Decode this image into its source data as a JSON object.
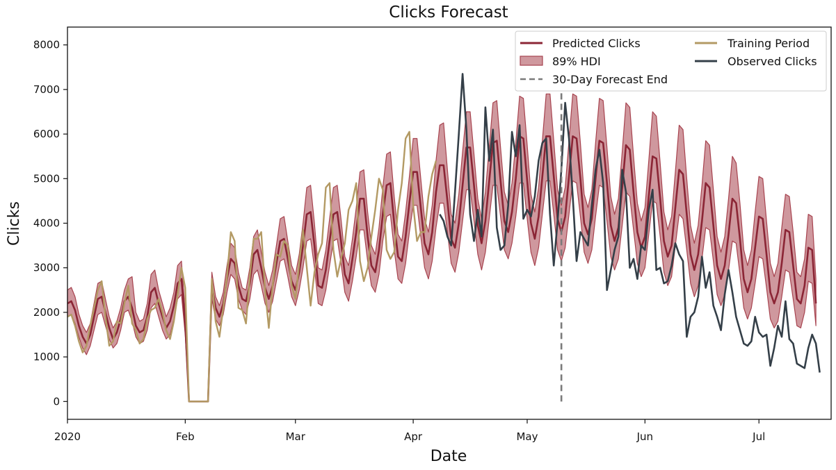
{
  "chart_data": {
    "type": "line",
    "title": "Clicks Forecast",
    "xlabel": "Date",
    "ylabel": "Clicks",
    "x_range": [
      "2020-01-01",
      "2020-07-20"
    ],
    "ylim": [
      -400,
      8400
    ],
    "yticks": [
      0,
      1000,
      2000,
      3000,
      4000,
      5000,
      6000,
      7000,
      8000
    ],
    "xticks": [
      {
        "date": "2020-01-01",
        "label": "2020"
      },
      {
        "date": "2020-02-01",
        "label": "Feb"
      },
      {
        "date": "2020-03-01",
        "label": "Mar"
      },
      {
        "date": "2020-04-01",
        "label": "Apr"
      },
      {
        "date": "2020-05-01",
        "label": "May"
      },
      {
        "date": "2020-06-01",
        "label": "Jun"
      },
      {
        "date": "2020-07-01",
        "label": "Jul"
      }
    ],
    "forecast_end": {
      "date": "2020-05-10",
      "label": "30-Day Forecast End"
    },
    "legend_position": "upper-right",
    "colors": {
      "predicted": "#8b2535",
      "hdi_fill": "#a7434f",
      "training": "#b39a64",
      "observed": "#343f48",
      "forecast_end": "#7a7a7a"
    },
    "series": [
      {
        "name": "Predicted Clicks",
        "start_date": "2020-01-01",
        "values": [
          2200,
          2250,
          2050,
          1700,
          1450,
          1300,
          1500,
          1900,
          2300,
          2350,
          2000,
          1650,
          1400,
          1550,
          1850,
          2250,
          2350,
          2100,
          1700,
          1550,
          1600,
          1900,
          2450,
          2550,
          2200,
          1900,
          1650,
          1800,
          2150,
          2650,
          2750,
          1750,
          0,
          0,
          0,
          0,
          0,
          0,
          2600,
          2100,
          1900,
          2200,
          2750,
          3200,
          3100,
          2600,
          2300,
          2250,
          2650,
          3300,
          3400,
          3000,
          2550,
          2300,
          2600,
          3100,
          3600,
          3650,
          3200,
          2700,
          2500,
          2900,
          3500,
          4200,
          4250,
          3500,
          2600,
          2550,
          2950,
          3600,
          4200,
          4250,
          3600,
          2850,
          2650,
          3200,
          3800,
          4550,
          4550,
          3700,
          3050,
          2900,
          3400,
          4200,
          4850,
          4900,
          4000,
          3250,
          3150,
          3700,
          4450,
          5150,
          5150,
          4350,
          3550,
          3300,
          3800,
          4700,
          5300,
          5300,
          4500,
          3650,
          3450,
          4000,
          4850,
          5700,
          5700,
          4850,
          3950,
          3550,
          4050,
          4950,
          5800,
          5850,
          4950,
          4050,
          3800,
          4250,
          5000,
          5950,
          5900,
          4950,
          4000,
          3650,
          4150,
          5050,
          5950,
          5950,
          5050,
          4100,
          3800,
          4150,
          5050,
          5950,
          5900,
          5000,
          4000,
          3750,
          4100,
          5000,
          5850,
          5800,
          4900,
          3950,
          3600,
          3900,
          4800,
          5750,
          5650,
          4700,
          3800,
          3450,
          3700,
          4600,
          5500,
          5450,
          4550,
          3600,
          3250,
          3500,
          4350,
          5200,
          5100,
          4200,
          3300,
          2950,
          3300,
          4050,
          4900,
          4800,
          3950,
          3050,
          2750,
          3050,
          3750,
          4550,
          4450,
          3650,
          2750,
          2450,
          2750,
          3450,
          4150,
          4100,
          3300,
          2450,
          2200,
          2450,
          3100,
          3850,
          3800,
          3050,
          2300,
          2200,
          2600,
          3450,
          3400,
          2200
        ]
      },
      {
        "name": "89% HDI Lower",
        "start_date": "2020-01-01",
        "values": [
          1900,
          1950,
          1750,
          1450,
          1200,
          1050,
          1250,
          1600,
          1950,
          2000,
          1700,
          1400,
          1200,
          1300,
          1600,
          2000,
          2050,
          1800,
          1450,
          1300,
          1350,
          1600,
          2100,
          2200,
          1900,
          1600,
          1400,
          1500,
          1850,
          2300,
          2400,
          1500,
          0,
          0,
          0,
          0,
          0,
          0,
          2300,
          1850,
          1700,
          1950,
          2450,
          2850,
          2750,
          2300,
          2050,
          1950,
          2300,
          2850,
          2950,
          2600,
          2200,
          2000,
          2250,
          2700,
          3150,
          3200,
          2800,
          2350,
          2150,
          2500,
          3000,
          3600,
          3650,
          3000,
          2200,
          2150,
          2500,
          3050,
          3600,
          3650,
          3100,
          2450,
          2250,
          2700,
          3250,
          3850,
          3850,
          3150,
          2600,
          2450,
          2850,
          3600,
          4150,
          4200,
          3400,
          2750,
          2650,
          3100,
          3800,
          4400,
          4400,
          3700,
          3000,
          2750,
          3150,
          3900,
          4450,
          4450,
          3800,
          3100,
          2900,
          3350,
          4050,
          4750,
          4750,
          4050,
          3300,
          2950,
          3350,
          4100,
          4850,
          4850,
          4150,
          3400,
          3200,
          3550,
          4150,
          4900,
          4900,
          4100,
          3350,
          3050,
          3450,
          4200,
          4950,
          4950,
          4200,
          3400,
          3150,
          3450,
          4200,
          4950,
          4900,
          4150,
          3350,
          3100,
          3400,
          4150,
          4850,
          4800,
          4050,
          3250,
          2950,
          3200,
          3950,
          4700,
          4600,
          3850,
          3100,
          2800,
          3000,
          3750,
          4500,
          4450,
          3700,
          2900,
          2600,
          2800,
          3500,
          4200,
          4100,
          3400,
          2650,
          2350,
          2600,
          3200,
          3900,
          3850,
          3150,
          2400,
          2150,
          2400,
          2950,
          3600,
          3550,
          2850,
          2100,
          1850,
          2100,
          2650,
          3250,
          3200,
          2550,
          1850,
          1650,
          1800,
          2350,
          2950,
          2900,
          2300,
          1700,
          1650,
          2000,
          2700,
          2650,
          1700
        ]
      },
      {
        "name": "89% HDI Upper",
        "start_date": "2020-01-01",
        "values": [
          2500,
          2560,
          2350,
          1960,
          1700,
          1550,
          1750,
          2200,
          2650,
          2700,
          2300,
          1900,
          1650,
          1800,
          2100,
          2500,
          2750,
          2800,
          2000,
          1800,
          1850,
          2200,
          2850,
          2950,
          2500,
          2200,
          1900,
          2100,
          2450,
          3050,
          3150,
          2000,
          0,
          0,
          0,
          0,
          0,
          0,
          2900,
          2350,
          2150,
          2450,
          3050,
          3550,
          3450,
          2900,
          2550,
          2500,
          3000,
          3700,
          3850,
          3350,
          2900,
          2600,
          2950,
          3500,
          4100,
          4150,
          3600,
          3050,
          2850,
          3300,
          4000,
          4800,
          4850,
          4000,
          3000,
          2950,
          3400,
          4100,
          4800,
          4850,
          4100,
          3250,
          3050,
          3650,
          4350,
          5150,
          5200,
          4250,
          3500,
          3300,
          3900,
          4800,
          5550,
          5600,
          4600,
          3750,
          3600,
          4250,
          5050,
          5900,
          5900,
          5000,
          4100,
          3800,
          4400,
          5400,
          6200,
          6250,
          5200,
          4200,
          4000,
          4650,
          5600,
          6500,
          6500,
          5550,
          4550,
          4100,
          4700,
          5700,
          6700,
          6750,
          5700,
          4700,
          4400,
          4900,
          5800,
          6850,
          6800,
          5750,
          4650,
          4250,
          4800,
          5850,
          6900,
          6900,
          5850,
          4750,
          4400,
          4800,
          5850,
          6900,
          6850,
          5800,
          4650,
          4350,
          4750,
          5800,
          6800,
          6750,
          5700,
          4600,
          4200,
          4550,
          5600,
          6700,
          6600,
          5500,
          4450,
          4050,
          4350,
          5400,
          6500,
          6400,
          5350,
          4250,
          3850,
          4150,
          5150,
          6200,
          6100,
          5000,
          3950,
          3550,
          3950,
          4850,
          5850,
          5750,
          4750,
          3700,
          3350,
          3700,
          4550,
          5500,
          5350,
          4450,
          3400,
          3050,
          3400,
          4250,
          5050,
          5000,
          4050,
          3100,
          2800,
          3100,
          3900,
          4650,
          4600,
          3800,
          2900,
          2800,
          3200,
          4200,
          4150,
          2750
        ]
      },
      {
        "name": "Training Period",
        "start_date": "2020-01-01",
        "end_date": "2020-04-07",
        "values": [
          1900,
          1950,
          1700,
          1350,
          1100,
          1250,
          1700,
          2100,
          2500,
          2700,
          1900,
          1250,
          1350,
          1800,
          1750,
          2200,
          2600,
          1750,
          1600,
          1300,
          1400,
          1850,
          2050,
          2100,
          2300,
          2000,
          1600,
          1400,
          1800,
          2400,
          3000,
          2550,
          0,
          0,
          0,
          0,
          0,
          0,
          2750,
          1800,
          1450,
          2100,
          2800,
          3800,
          3600,
          2100,
          2050,
          1750,
          2800,
          3650,
          3650,
          3800,
          2500,
          1650,
          2600,
          3300,
          3250,
          3600,
          3500,
          2600,
          2300,
          3100,
          3850,
          3000,
          2150,
          2900,
          3300,
          3550,
          4800,
          4900,
          3400,
          2800,
          3200,
          3550,
          4300,
          4500,
          4900,
          3150,
          2700,
          3000,
          3700,
          4300,
          5000,
          4750,
          3400,
          3200,
          3350,
          4300,
          4900,
          5900,
          6050,
          4400,
          3600,
          3800,
          3800,
          4600,
          5100,
          5400
        ]
      },
      {
        "name": "Observed Clicks",
        "start_date": "2020-04-08",
        "values": [
          4200,
          4050,
          3700,
          3500,
          4700,
          6000,
          7350,
          6100,
          4200,
          3600,
          4300,
          3700,
          6600,
          5400,
          6100,
          3900,
          3400,
          3500,
          4400,
          6050,
          5500,
          6200,
          4100,
          4300,
          4150,
          4600,
          5400,
          5800,
          5900,
          4200,
          3050,
          4050,
          5200,
          6700,
          5900,
          4600,
          3150,
          3800,
          3650,
          3500,
          4400,
          5200,
          5650,
          4900,
          2500,
          2950,
          3400,
          3700,
          5200,
          4700,
          3000,
          3200,
          2750,
          3500,
          3400,
          4300,
          4750,
          2950,
          3000,
          2650,
          2700,
          3050,
          3550,
          3300,
          3150,
          1450,
          1900,
          2000,
          2350,
          3250,
          2550,
          2900,
          2150,
          1900,
          1600,
          2400,
          2950,
          2450,
          1900,
          1600,
          1300,
          1250,
          1350,
          1900,
          1550,
          1450,
          1500,
          800,
          1200,
          1700,
          1450,
          2250,
          1400,
          1300,
          850,
          800,
          750,
          1200,
          1500,
          1300,
          650
        ]
      }
    ]
  },
  "legend": {
    "predicted_label": "Predicted Clicks",
    "hdi_label": "89% HDI",
    "forecast_end_label": "30-Day Forecast End",
    "training_label": "Training Period",
    "observed_label": "Observed Clicks"
  }
}
